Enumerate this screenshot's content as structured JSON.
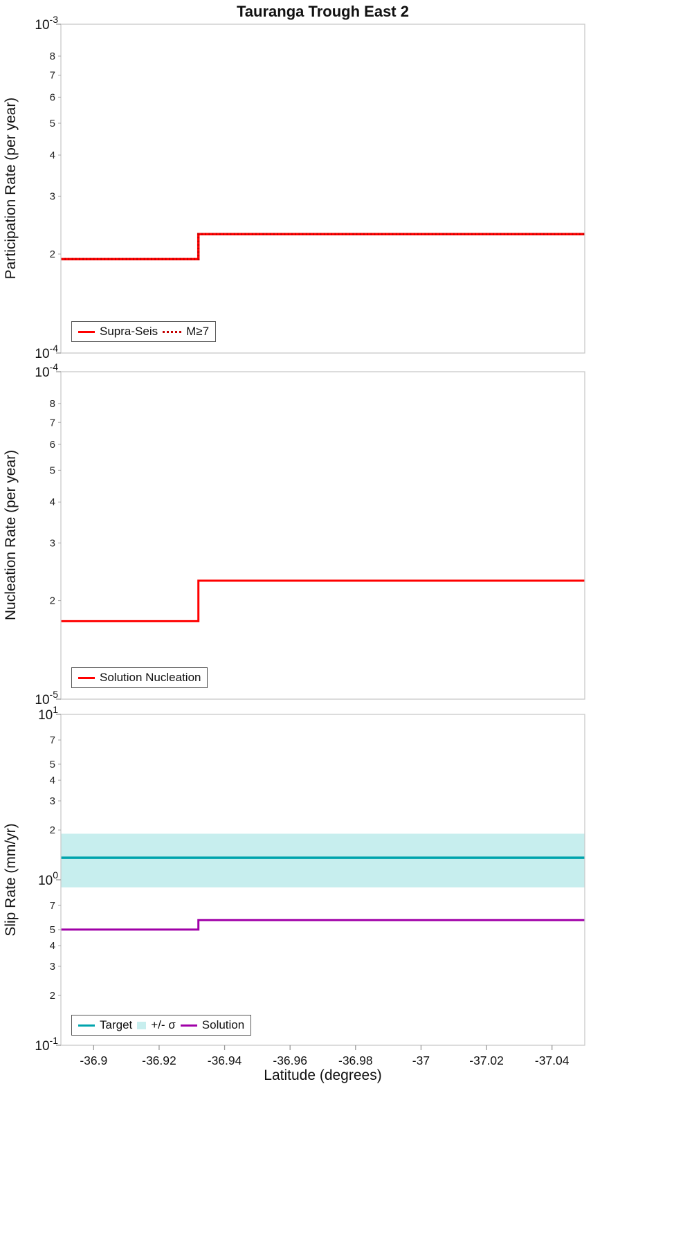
{
  "title": "Tauranga Trough East 2",
  "xlabel": "Latitude (degrees)",
  "x_ticks": [
    {
      "v": -36.9,
      "label": "-36.9"
    },
    {
      "v": -36.92,
      "label": "-36.92"
    },
    {
      "v": -36.94,
      "label": "-36.94"
    },
    {
      "v": -36.96,
      "label": "-36.96"
    },
    {
      "v": -36.98,
      "label": "-36.98"
    },
    {
      "v": -37,
      "label": "-37"
    },
    {
      "v": -37.02,
      "label": "-37.02"
    },
    {
      "v": -37.04,
      "label": "-37.04"
    }
  ],
  "chart_data": [
    {
      "type": "line",
      "ylabel": "Participation Rate (per year)",
      "yscale": "log",
      "ylim": [
        0.0001,
        0.001
      ],
      "y_exp_min": -4,
      "y_exp_max": -3,
      "y_minor_tick_labels": [
        2,
        3,
        4,
        5,
        6,
        7,
        8
      ],
      "xlim": [
        -36.89,
        -37.05
      ],
      "x_inverted": true,
      "legend_position": "bottom-left",
      "series": [
        {
          "name": "Supra-Seis",
          "color": "#ff0000",
          "line_style": "solid",
          "width": 3.5,
          "x": [
            -36.89,
            -36.932,
            -36.932,
            -37.05
          ],
          "y": [
            0.000193,
            0.000193,
            0.00023,
            0.00023
          ]
        },
        {
          "name": "M≥7",
          "color": "#c40000",
          "line_style": "dotted",
          "width": 3.2,
          "dash": "1.8 3.4",
          "x": [
            -36.89,
            -36.932,
            -36.932,
            -37.05
          ],
          "y": [
            0.000193,
            0.000193,
            0.00023,
            0.00023
          ]
        }
      ]
    },
    {
      "type": "line",
      "ylabel": "Nucleation Rate (per year)",
      "yscale": "log",
      "ylim": [
        1e-05,
        0.0001
      ],
      "y_exp_min": -5,
      "y_exp_max": -4,
      "y_minor_tick_labels": [
        2,
        3,
        4,
        5,
        6,
        7,
        8
      ],
      "xlim": [
        -36.89,
        -37.05
      ],
      "x_inverted": true,
      "legend_position": "bottom-left",
      "series": [
        {
          "name": "Solution Nucleation",
          "color": "#ff0000",
          "line_style": "solid",
          "width": 3,
          "x": [
            -36.89,
            -36.932,
            -36.932,
            -37.05
          ],
          "y": [
            1.73e-05,
            1.73e-05,
            2.3e-05,
            2.3e-05
          ]
        }
      ]
    },
    {
      "type": "line",
      "ylabel": "Slip Rate (mm/yr)",
      "yscale": "log",
      "ylim": [
        0.1,
        10
      ],
      "y_exp_min": -1,
      "y_exp_max": 1,
      "y_minor_tick_labels": [
        2,
        3,
        4,
        5,
        7
      ],
      "xlim": [
        -36.89,
        -37.05
      ],
      "x_inverted": true,
      "legend_position": "bottom-left",
      "bands": [
        {
          "name": "+/- σ",
          "color": "#c7eeee",
          "y_min": 0.9,
          "y_max": 1.9
        }
      ],
      "series": [
        {
          "name": "Target",
          "color": "#00a4ad",
          "line_style": "solid",
          "width": 3.5,
          "x": [
            -36.89,
            -37.05
          ],
          "y": [
            1.36,
            1.36
          ]
        },
        {
          "name": "Solution",
          "color": "#a000a8",
          "line_style": "solid",
          "width": 3,
          "x": [
            -36.89,
            -36.932,
            -36.932,
            -37.05
          ],
          "y": [
            0.5,
            0.5,
            0.57,
            0.57
          ]
        }
      ]
    }
  ]
}
